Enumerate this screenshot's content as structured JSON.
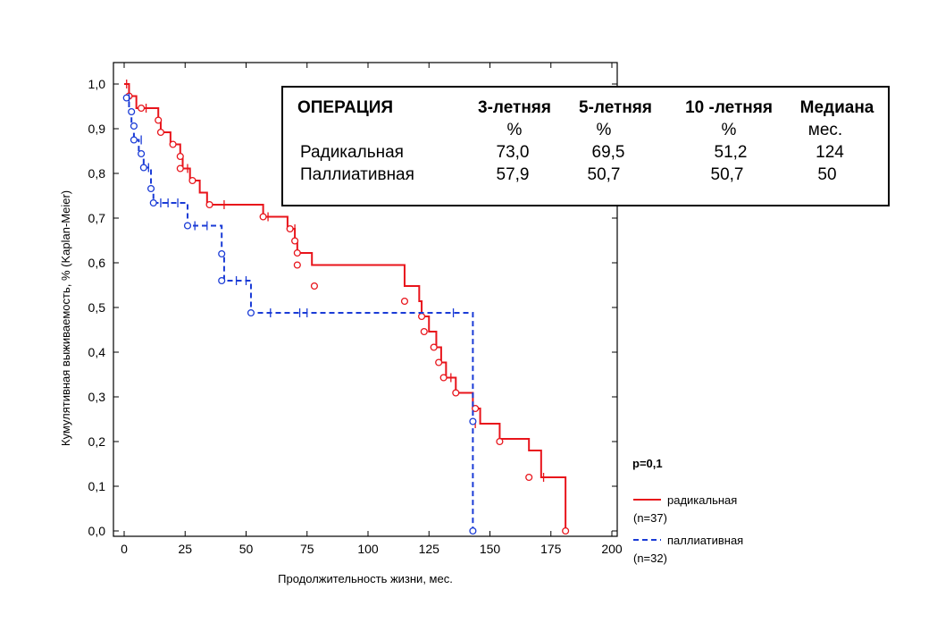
{
  "chart_data": {
    "type": "line",
    "subtype": "kaplan-meier-step",
    "xlabel": "Продолжительность жизни, мес.",
    "ylabel": "Кумулятивная выживаемость, % (Kaplan-Meier)",
    "xlim": [
      0,
      200
    ],
    "ylim": [
      0,
      1.0
    ],
    "x_ticks": [
      "0",
      "25",
      "50",
      "75",
      "100",
      "125",
      "150",
      "175",
      "200"
    ],
    "y_ticks": [
      "0,0",
      "0,1",
      "0,2",
      "0,3",
      "0,4",
      "0,5",
      "0,6",
      "0,7",
      "0,8",
      "0,9",
      "1,0"
    ],
    "grid": false,
    "p_value": "p=0,1",
    "legend_position": "bottom-right",
    "series": [
      {
        "name": "радикальная",
        "count_label": "(n=37)",
        "color": "#e8141b",
        "line_style": "solid",
        "steps": [
          [
            0,
            1.0
          ],
          [
            2,
            0.973
          ],
          [
            5,
            0.946
          ],
          [
            14,
            0.919
          ],
          [
            15,
            0.892
          ],
          [
            19,
            0.865
          ],
          [
            23,
            0.838
          ],
          [
            24,
            0.811
          ],
          [
            27,
            0.784
          ],
          [
            31,
            0.757
          ],
          [
            34,
            0.73
          ],
          [
            57,
            0.703
          ],
          [
            67,
            0.676
          ],
          [
            70,
            0.649
          ],
          [
            71,
            0.622
          ],
          [
            77,
            0.595
          ],
          [
            115,
            0.548
          ],
          [
            121,
            0.514
          ],
          [
            122,
            0.48
          ],
          [
            125,
            0.446
          ],
          [
            128,
            0.411
          ],
          [
            130,
            0.377
          ],
          [
            132,
            0.343
          ],
          [
            136,
            0.309
          ],
          [
            143,
            0.274
          ],
          [
            146,
            0.24
          ],
          [
            154,
            0.206
          ],
          [
            166,
            0.18
          ],
          [
            171,
            0.12
          ],
          [
            181,
            0.0
          ]
        ],
        "events": [
          [
            2,
            0.973
          ],
          [
            7,
            0.946
          ],
          [
            14,
            0.919
          ],
          [
            15,
            0.892
          ],
          [
            20,
            0.865
          ],
          [
            23,
            0.838
          ],
          [
            23,
            0.811
          ],
          [
            28,
            0.784
          ],
          [
            35,
            0.73
          ],
          [
            57,
            0.703
          ],
          [
            68,
            0.676
          ],
          [
            70,
            0.649
          ],
          [
            71,
            0.622
          ],
          [
            71,
            0.595
          ],
          [
            78,
            0.548
          ],
          [
            115,
            0.514
          ],
          [
            122,
            0.48
          ],
          [
            123,
            0.446
          ],
          [
            127,
            0.411
          ],
          [
            129,
            0.377
          ],
          [
            131,
            0.343
          ],
          [
            136,
            0.309
          ],
          [
            144,
            0.274
          ],
          [
            154,
            0.2
          ],
          [
            166,
            0.12
          ],
          [
            181,
            0.0
          ]
        ],
        "censored": [
          [
            1,
            1.0
          ],
          [
            9,
            0.946
          ],
          [
            26,
            0.811
          ],
          [
            41,
            0.73
          ],
          [
            59,
            0.703
          ],
          [
            70,
            0.676
          ],
          [
            134,
            0.343
          ],
          [
            144,
            0.24
          ],
          [
            172,
            0.12
          ]
        ]
      },
      {
        "name": "паллиативная",
        "count_label": "(n=32)",
        "color": "#1a3bd6",
        "line_style": "dashed",
        "steps": [
          [
            0,
            0.969
          ],
          [
            2,
            0.938
          ],
          [
            3,
            0.906
          ],
          [
            4,
            0.875
          ],
          [
            6,
            0.844
          ],
          [
            8,
            0.813
          ],
          [
            11,
            0.766
          ],
          [
            12,
            0.734
          ],
          [
            26,
            0.708
          ],
          [
            26,
            0.683
          ],
          [
            40,
            0.652
          ],
          [
            40,
            0.62
          ],
          [
            41,
            0.56
          ],
          [
            52,
            0.527
          ],
          [
            52,
            0.488
          ],
          [
            143,
            0.274
          ],
          [
            143,
            0.0
          ]
        ],
        "events": [
          [
            1,
            0.969
          ],
          [
            3,
            0.938
          ],
          [
            4,
            0.906
          ],
          [
            4,
            0.875
          ],
          [
            7,
            0.844
          ],
          [
            8,
            0.813
          ],
          [
            11,
            0.766
          ],
          [
            12,
            0.734
          ],
          [
            26,
            0.683
          ],
          [
            40,
            0.62
          ],
          [
            40,
            0.56
          ],
          [
            52,
            0.488
          ],
          [
            143,
            0.245
          ],
          [
            143,
            0.0
          ]
        ],
        "censored": [
          [
            2,
            0.969
          ],
          [
            7,
            0.875
          ],
          [
            10,
            0.813
          ],
          [
            15,
            0.734
          ],
          [
            18,
            0.734
          ],
          [
            22,
            0.734
          ],
          [
            29,
            0.683
          ],
          [
            34,
            0.683
          ],
          [
            46,
            0.56
          ],
          [
            50,
            0.56
          ],
          [
            60,
            0.488
          ],
          [
            72,
            0.488
          ],
          [
            75,
            0.488
          ],
          [
            135,
            0.488
          ]
        ]
      }
    ],
    "summary_table": {
      "header": [
        "ОПЕРАЦИЯ",
        "3-летняя",
        "5-летняя",
        "10 -летняя",
        "Медиана"
      ],
      "subheader": [
        "",
        "%",
        "%",
        "%",
        "мес."
      ],
      "rows": [
        [
          "Радикальная",
          "73,0",
          "69,5",
          "51,2",
          "124"
        ],
        [
          "Паллиативная",
          "57,9",
          "50,7",
          "50,7",
          "50"
        ]
      ]
    }
  }
}
